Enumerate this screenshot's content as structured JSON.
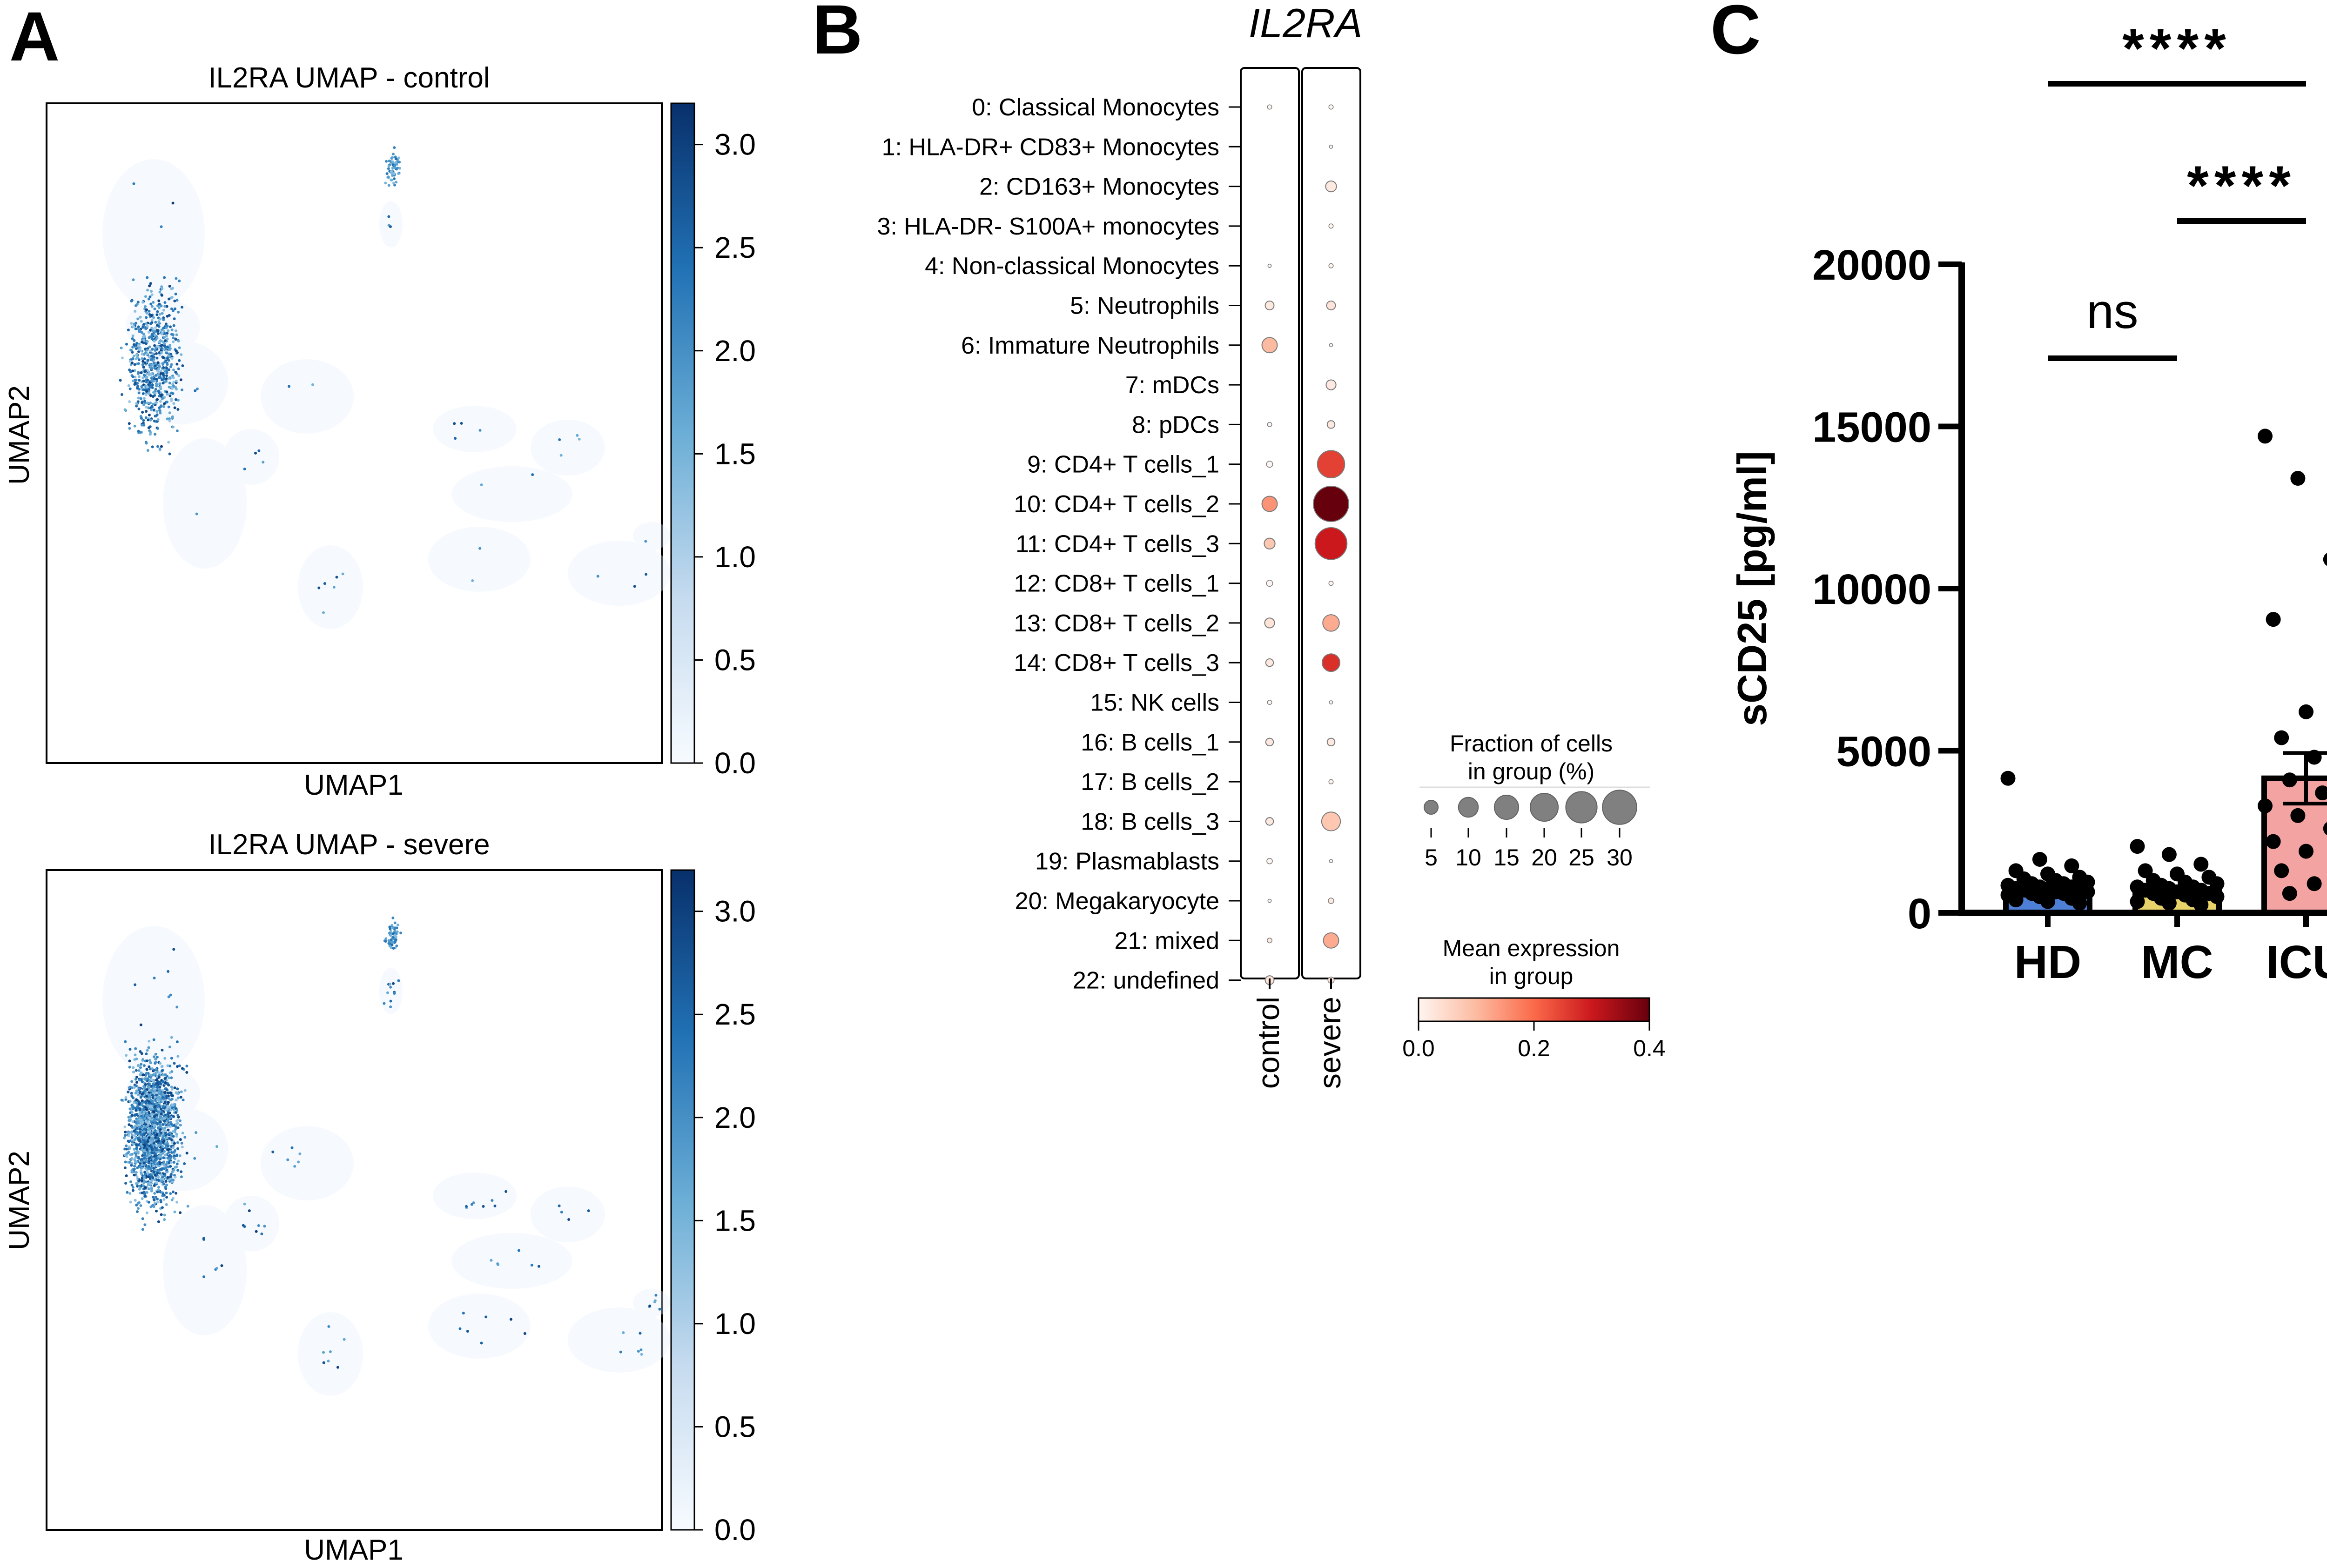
{
  "panels": {
    "a": "A",
    "b": "B",
    "c": "C"
  },
  "umap": {
    "control": {
      "title": "IL2RA UMAP - control",
      "xlabel": "UMAP1",
      "ylabel": "UMAP2"
    },
    "severe": {
      "title": "IL2RA UMAP - severe",
      "xlabel": "UMAP1",
      "ylabel": "UMAP2"
    },
    "colorbar": {
      "ticks": [
        "3.0",
        "2.5",
        "2.0",
        "1.5",
        "1.0",
        "0.5",
        "0.0"
      ],
      "tick_values": [
        3.0,
        2.5,
        2.0,
        1.5,
        1.0,
        0.5,
        0.0
      ],
      "range": [
        0.0,
        3.2
      ],
      "colormap": [
        "#f7fbff",
        "#c6dbef",
        "#6baed6",
        "#2171b5",
        "#08306b"
      ]
    }
  },
  "chart_data": [
    {
      "type": "scatter",
      "title": "IL2RA UMAP - control",
      "xlabel": "UMAP1",
      "ylabel": "UMAP2",
      "color_range": [
        0.0,
        3.2
      ]
    },
    {
      "type": "scatter",
      "title": "IL2RA UMAP - severe",
      "xlabel": "UMAP1",
      "ylabel": "UMAP2",
      "color_range": [
        0.0,
        3.2
      ]
    },
    {
      "type": "dotplot",
      "title": "IL2RA",
      "columns": [
        "control",
        "severe"
      ],
      "rows": [
        "0: Classical Monocytes",
        "1: HLA-DR+ CD83+ Monocytes",
        "2: CD163+ Monocytes",
        "3: HLA-DR- S100A+ monocytes",
        "4: Non-classical Monocytes",
        "5: Neutrophils",
        "6: Immature Neutrophils",
        "7: mDCs",
        "8: pDCs",
        "9: CD4+ T cells_1",
        "10: CD4+ T cells_2",
        "11: CD4+ T cells_3",
        "12: CD8+ T cells_1",
        "13: CD8+ T cells_2",
        "14: CD8+ T cells_3",
        "15: NK cells",
        "16: B cells_1",
        "17: B cells_2",
        "18: B cells_3",
        "19: Plasmablasts",
        "20: Megakaryocyte",
        "21: mixed",
        "22: undefined"
      ],
      "fraction_control": [
        0.5,
        0,
        0,
        0,
        0.3,
        2,
        6,
        0,
        0.5,
        1,
        6,
        3,
        1,
        2.5,
        1.5,
        0.5,
        1.5,
        0,
        1.5,
        0.8,
        0.3,
        0.6,
        2
      ],
      "fraction_severe": [
        0.5,
        0.3,
        3,
        0.5,
        0.5,
        2,
        0.3,
        2.5,
        1.5,
        19,
        32,
        26,
        0.5,
        7,
        8,
        0.3,
        1.5,
        0.5,
        9,
        0.3,
        0.8,
        6,
        1
      ],
      "mean_control": [
        0.0,
        0.0,
        0.0,
        0.0,
        0.0,
        0.02,
        0.1,
        0.0,
        0.0,
        0.0,
        0.15,
        0.08,
        0.0,
        0.03,
        0.02,
        0.0,
        0.02,
        0.0,
        0.02,
        0.0,
        0.0,
        0.02,
        0.03
      ],
      "mean_severe": [
        0.0,
        0.0,
        0.02,
        0.0,
        0.0,
        0.03,
        0.0,
        0.02,
        0.02,
        0.25,
        0.4,
        0.3,
        0.0,
        0.12,
        0.27,
        0.0,
        0.02,
        0.0,
        0.08,
        0.0,
        0.02,
        0.12,
        0.03
      ],
      "size_legend_title_1": "Fraction of cells",
      "size_legend_title_2": "in group (%)",
      "size_legend_values": [
        "5",
        "10",
        "15",
        "20",
        "25",
        "30"
      ],
      "color_legend_title_1": "Mean expression",
      "color_legend_title_2": "in group",
      "color_legend_ticks": [
        "0.0",
        "0.2",
        "0.4"
      ],
      "color_range": [
        0.0,
        0.4
      ],
      "colormap": [
        "#fff5f0",
        "#fcbba1",
        "#fb6a4a",
        "#cb181d",
        "#67000d"
      ]
    },
    {
      "type": "bar",
      "categories": [
        "HD",
        "MC",
        "ICU"
      ],
      "values": [
        800,
        700,
        4150
      ],
      "sem": [
        80,
        60,
        780
      ],
      "bar_colors": [
        "#4d7fd6",
        "#e8d36a",
        "#f4a3a3"
      ],
      "ylabel": "sCD25 [pg/ml]",
      "ylim": [
        0,
        20000
      ],
      "yticks": [
        "0",
        "5000",
        "10000",
        "15000",
        "20000"
      ],
      "ytick_values": [
        0,
        5000,
        10000,
        15000,
        20000
      ],
      "points_HD": [
        4150,
        1650,
        1450,
        1300,
        1200,
        1100,
        1050,
        1000,
        950,
        900,
        900,
        850,
        800,
        800,
        750,
        750,
        700,
        700,
        650,
        650,
        600,
        600,
        550,
        500,
        450,
        400,
        350,
        300
      ],
      "points_MC": [
        2050,
        1800,
        1500,
        1300,
        1200,
        1100,
        1000,
        950,
        900,
        850,
        800,
        800,
        750,
        700,
        700,
        650,
        600,
        600,
        550,
        500,
        450,
        400,
        350,
        300,
        250
      ],
      "points_ICU": [
        14700,
        13400,
        10900,
        9050,
        6200,
        5700,
        5400,
        4800,
        4400,
        4100,
        3700,
        3300,
        3000,
        2600,
        2200,
        1900,
        1600,
        1300,
        900,
        800,
        600
      ],
      "significance": [
        {
          "groups": [
            "HD",
            "MC"
          ],
          "label": "ns"
        },
        {
          "groups": [
            "MC",
            "ICU"
          ],
          "label": "****"
        },
        {
          "groups": [
            "HD",
            "ICU"
          ],
          "label": "****"
        }
      ]
    }
  ]
}
